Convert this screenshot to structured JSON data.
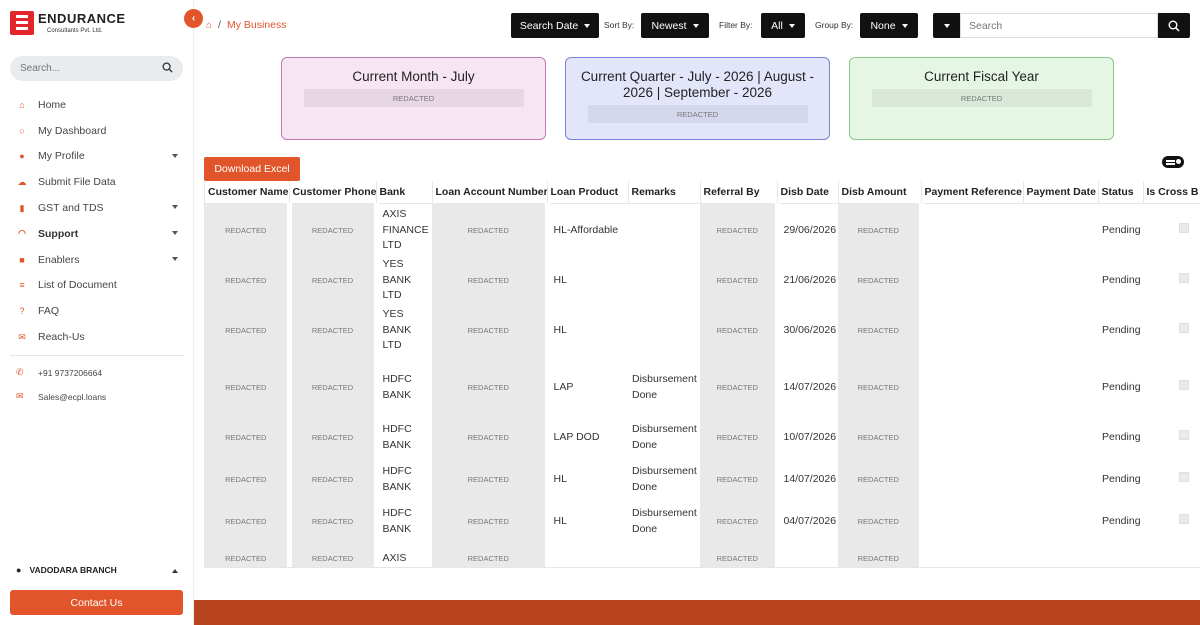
{
  "brand": {
    "name": "ENDURANCE",
    "sub": "Consultants Pvt. Ltd."
  },
  "sidebar": {
    "search_placeholder": "Search...",
    "items": [
      {
        "label": "Home",
        "icon": "home-icon"
      },
      {
        "label": "My Dashboard",
        "icon": "circle-icon"
      },
      {
        "label": "My Profile",
        "icon": "user-circle-icon"
      },
      {
        "label": "Submit File Data",
        "icon": "cloud-upload-icon"
      },
      {
        "label": "GST and TDS",
        "icon": "file-icon"
      },
      {
        "label": "Support",
        "icon": "headset-icon"
      },
      {
        "label": "Enablers",
        "icon": "briefcase-icon"
      },
      {
        "label": "List of Document",
        "icon": "list-icon"
      },
      {
        "label": "FAQ",
        "icon": "question-icon"
      },
      {
        "label": "Reach-Us",
        "icon": "envelope-icon"
      }
    ],
    "phone": "+91 9737206664",
    "email": "Sales@ecpl.loans",
    "branch": "VADODARA BRANCH",
    "contact_button": "Contact Us"
  },
  "header": {
    "breadcrumb": {
      "separator": "/",
      "current": "My Business"
    },
    "search_date": "Search Date",
    "sort_label": "Sort By:",
    "sort_value": "Newest",
    "filter_label": "Filter By:",
    "filter_value": "All",
    "group_label": "Group By:",
    "group_value": "None",
    "search_placeholder": "Search"
  },
  "cards": [
    {
      "title": "Current Month - July",
      "value": "REDACTED",
      "color": "#f6e5f3"
    },
    {
      "title": "Current Quarter - July - 2026 | August - 2026 | September - 2026",
      "value": "REDACTED",
      "color": "#e3e5fb"
    },
    {
      "title": "Current Fiscal Year",
      "value": "REDACTED",
      "color": "#e6f6e5"
    }
  ],
  "download_button": "Download Excel",
  "table": {
    "columns": [
      "Customer Name",
      "Customer Phone",
      "Bank",
      "Loan Account Number",
      "Loan Product",
      "Remarks",
      "Referral By",
      "Disb Date",
      "Disb Amount",
      "Payment Reference",
      "Payment Date",
      "Status",
      "Is Cross B"
    ],
    "rows": [
      {
        "name": "REDACTED",
        "phone": "REDACTED",
        "bank": "AXIS FINANCE LTD",
        "account": "REDACTED",
        "product": "HL-Affordable",
        "remarks": "",
        "referral": "REDACTED",
        "date": "29/06/2026",
        "amount": "REDACTED",
        "payref": "",
        "paydate": "",
        "status": "Pending"
      },
      {
        "name": "REDACTED",
        "phone": "REDACTED",
        "bank": "YES BANK LTD",
        "account": "REDACTED",
        "product": "HL",
        "remarks": "",
        "referral": "REDACTED",
        "date": "21/06/2026",
        "amount": "REDACTED",
        "payref": "",
        "paydate": "",
        "status": "Pending"
      },
      {
        "name": "REDACTED",
        "phone": "REDACTED",
        "bank": "YES BANK LTD",
        "account": "REDACTED",
        "product": "HL",
        "remarks": "",
        "referral": "REDACTED",
        "date": "30/06/2026",
        "amount": "REDACTED",
        "payref": "",
        "paydate": "",
        "status": "Pending"
      },
      {
        "name": "REDACTED",
        "phone": "REDACTED",
        "bank": "HDFC BANK",
        "account": "REDACTED",
        "product": "LAP",
        "remarks": "Disbursement Done",
        "referral": "REDACTED",
        "date": "14/07/2026",
        "amount": "REDACTED",
        "payref": "",
        "paydate": "",
        "status": "Pending"
      },
      {
        "name": "REDACTED",
        "phone": "REDACTED",
        "bank": "HDFC BANK",
        "account": "REDACTED",
        "product": "LAP DOD",
        "remarks": "Disbursement Done",
        "referral": "REDACTED",
        "date": "10/07/2026",
        "amount": "REDACTED",
        "payref": "",
        "paydate": "",
        "status": "Pending"
      },
      {
        "name": "REDACTED",
        "phone": "REDACTED",
        "bank": "HDFC BANK",
        "account": "REDACTED",
        "product": "HL",
        "remarks": "Disbursement Done",
        "referral": "REDACTED",
        "date": "14/07/2026",
        "amount": "REDACTED",
        "payref": "",
        "paydate": "",
        "status": "Pending"
      },
      {
        "name": "REDACTED",
        "phone": "REDACTED",
        "bank": "HDFC BANK",
        "account": "REDACTED",
        "product": "HL",
        "remarks": "Disbursement Done",
        "referral": "REDACTED",
        "date": "04/07/2026",
        "amount": "REDACTED",
        "payref": "",
        "paydate": "",
        "status": "Pending"
      },
      {
        "name": "REDACTED",
        "phone": "REDACTED",
        "bank": "AXIS",
        "account": "REDACTED",
        "product": "",
        "remarks": "",
        "referral": "REDACTED",
        "date": "",
        "amount": "REDACTED",
        "payref": "",
        "paydate": "",
        "status": ""
      }
    ]
  },
  "colors": {
    "accent": "#e2552a",
    "dark": "#111111",
    "footer": "#b8441e"
  }
}
